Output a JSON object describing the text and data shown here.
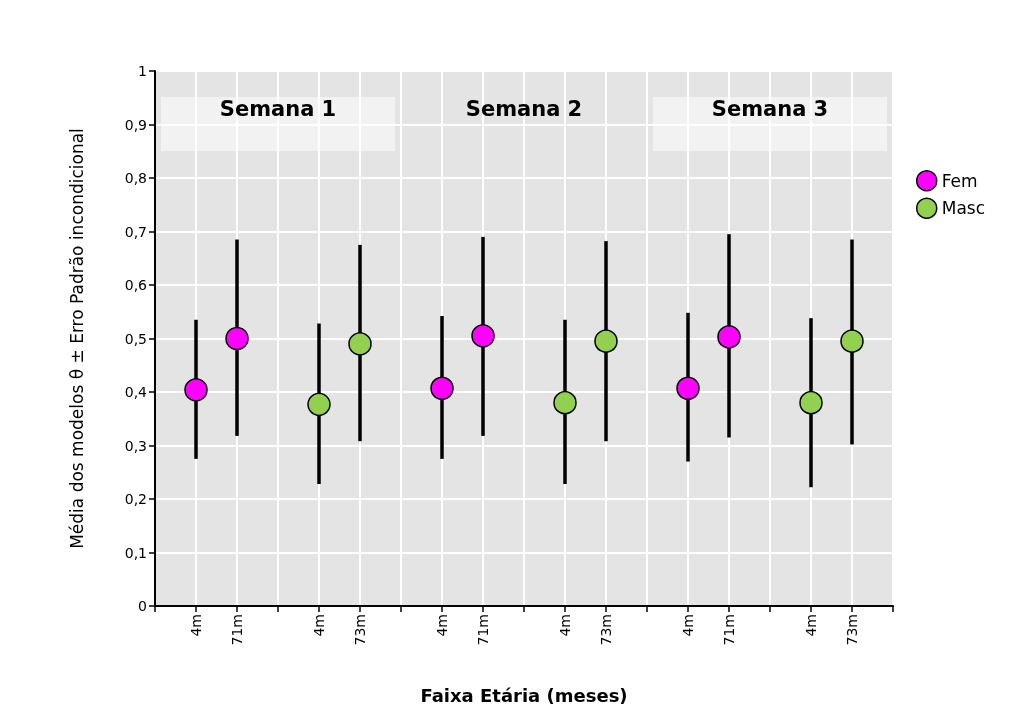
{
  "chart_data": {
    "type": "scatter",
    "xlabel": "Faixa Etária (meses)",
    "ylabel": "Média dos modelos θ ± Erro Padrão incondicional",
    "categories": [
      null,
      "4m",
      "71m",
      null,
      "4m",
      "73m",
      null,
      "4m",
      "71m",
      null,
      "4m",
      "73m",
      null,
      "4m",
      "71m",
      null,
      "4m",
      "73m",
      null
    ],
    "series": [
      {
        "name": "Fem",
        "color": "#ff00ff",
        "values": [
          null,
          0.404,
          0.5,
          null,
          null,
          null,
          null,
          0.407,
          0.505,
          null,
          null,
          null,
          null,
          0.407,
          0.503,
          null,
          null,
          null,
          null
        ],
        "errors": [
          null,
          [
            0.275,
            0.535
          ],
          [
            0.318,
            0.685
          ],
          null,
          null,
          null,
          null,
          [
            0.275,
            0.542
          ],
          [
            0.318,
            0.69
          ],
          null,
          null,
          null,
          null,
          [
            0.27,
            0.548
          ],
          [
            0.315,
            0.695
          ],
          null,
          null,
          null,
          null
        ]
      },
      {
        "name": "Masc",
        "color": "#92d050",
        "values": [
          null,
          null,
          null,
          null,
          0.377,
          0.49,
          null,
          null,
          null,
          null,
          0.38,
          0.495,
          null,
          null,
          null,
          null,
          0.38,
          0.495,
          null
        ],
        "errors": [
          null,
          null,
          null,
          null,
          [
            0.228,
            0.528
          ],
          [
            0.308,
            0.675
          ],
          null,
          null,
          null,
          null,
          [
            0.228,
            0.535
          ],
          [
            0.308,
            0.682
          ],
          null,
          null,
          null,
          null,
          [
            0.222,
            0.538
          ],
          [
            0.302,
            0.685
          ],
          null
        ]
      }
    ],
    "ylim": [
      0,
      1
    ],
    "yticks": [
      0,
      {
        "value": 0.1,
        "label": "0,1"
      },
      {
        "value": 0.2,
        "label": "0,2"
      },
      {
        "value": 0.3,
        "label": "0,3"
      },
      {
        "value": 0.4,
        "label": "0,4"
      },
      {
        "value": 0.5,
        "label": "0,5"
      },
      {
        "value": 0.6,
        "label": "0,6"
      },
      {
        "value": 0.7,
        "label": "0,7"
      },
      {
        "value": 0.8,
        "label": "0,8"
      },
      {
        "value": 0.9,
        "label": "0,9"
      },
      1
    ],
    "annotations": [
      "Semana 1",
      "Semana 2",
      "Semana 3"
    ],
    "grid": true,
    "legend": "right",
    "marker": "circle"
  }
}
